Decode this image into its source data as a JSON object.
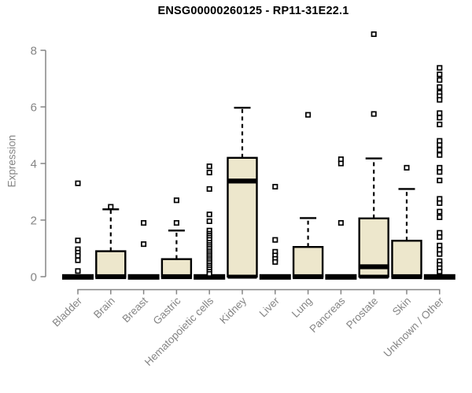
{
  "page": {
    "background": "#ffffff"
  },
  "chart_data": {
    "type": "boxplot",
    "title": "ENSG00000260125 - RP11-31E22.1",
    "ylabel": "Expression",
    "xlabel": "",
    "ylim": [
      0,
      8
    ],
    "yticks": [
      0,
      2,
      4,
      6,
      8
    ],
    "grid": false,
    "legend": false,
    "categories": [
      "Bladder",
      "Brain",
      "Breast",
      "Gastric",
      "Hematopoietic cells",
      "Kidney",
      "Liver",
      "Lung",
      "Pancreas",
      "Prostate",
      "Skin",
      "Unknown / Other"
    ],
    "series": [
      {
        "name": "Bladder",
        "min": 0,
        "q1": 0,
        "median": 0,
        "q3": 0,
        "whisker_max": 0,
        "outliers": [
          3.3,
          1.28,
          0.97,
          0.85,
          0.74,
          0.58,
          0.2
        ]
      },
      {
        "name": "Brain",
        "min": 0,
        "q1": 0,
        "median": 0,
        "q3": 0.9,
        "whisker_max": 2.38,
        "outliers": [
          2.47
        ]
      },
      {
        "name": "Breast",
        "min": 0,
        "q1": 0,
        "median": 0,
        "q3": 0,
        "whisker_max": 0,
        "outliers": [
          1.9,
          1.15
        ]
      },
      {
        "name": "Gastric",
        "min": 0,
        "q1": 0,
        "median": 0,
        "q3": 0.62,
        "whisker_max": 1.63,
        "outliers": [
          2.7,
          1.9
        ]
      },
      {
        "name": "Hematopoietic cells",
        "min": 0,
        "q1": 0,
        "median": 0,
        "q3": 0,
        "whisker_max": 0,
        "outliers": [
          3.9,
          3.68,
          3.1,
          2.2,
          1.96,
          1.63,
          1.52,
          1.45,
          1.38,
          1.3,
          1.2,
          1.12,
          1.05,
          0.98,
          0.9,
          0.83,
          0.76,
          0.69,
          0.62,
          0.55,
          0.48,
          0.4,
          0.33,
          0.26,
          0.18,
          0.1
        ]
      },
      {
        "name": "Kidney",
        "min": 0,
        "q1": 0,
        "median": 3.38,
        "q3": 4.2,
        "whisker_max": 5.97,
        "outliers": []
      },
      {
        "name": "Liver",
        "min": 0,
        "q1": 0,
        "median": 0,
        "q3": 0,
        "whisker_max": 0,
        "outliers": [
          3.18,
          1.3,
          0.88,
          0.75,
          0.63,
          0.52
        ]
      },
      {
        "name": "Lung",
        "min": 0,
        "q1": 0,
        "median": 0,
        "q3": 1.05,
        "whisker_max": 2.07,
        "outliers": [
          5.72
        ]
      },
      {
        "name": "Pancreas",
        "min": 0,
        "q1": 0,
        "median": 0,
        "q3": 0,
        "whisker_max": 0,
        "outliers": [
          4.15,
          4.0,
          1.9
        ]
      },
      {
        "name": "Prostate",
        "min": 0,
        "q1": 0,
        "median": 0.35,
        "q3": 2.06,
        "whisker_max": 4.18,
        "outliers": [
          8.57,
          5.75
        ]
      },
      {
        "name": "Skin",
        "min": 0,
        "q1": 0,
        "median": 0,
        "q3": 1.27,
        "whisker_max": 3.1,
        "outliers": [
          3.85
        ]
      },
      {
        "name": "Unknown / Other",
        "min": 0,
        "q1": 0,
        "median": 0,
        "q3": 0,
        "whisker_max": 0,
        "outliers": [
          7.38,
          7.15,
          6.95,
          6.7,
          6.5,
          6.38,
          6.25,
          5.78,
          5.62,
          5.38,
          4.8,
          4.65,
          4.48,
          4.3,
          3.85,
          3.7,
          3.4,
          2.75,
          2.6,
          2.3,
          2.1,
          1.55,
          1.4,
          1.1,
          0.95,
          0.8,
          0.55,
          0.42,
          0.3,
          0.18
        ]
      }
    ],
    "colors": {
      "box_fill": "#EDE7CC",
      "box_stroke": "#000000",
      "median": "#000000",
      "whisker": "#000000",
      "outlier_fill": "#ffffff",
      "outlier_stroke": "#000000",
      "axis": "#858585",
      "tick_label": "#858585",
      "title": "#000000"
    }
  }
}
